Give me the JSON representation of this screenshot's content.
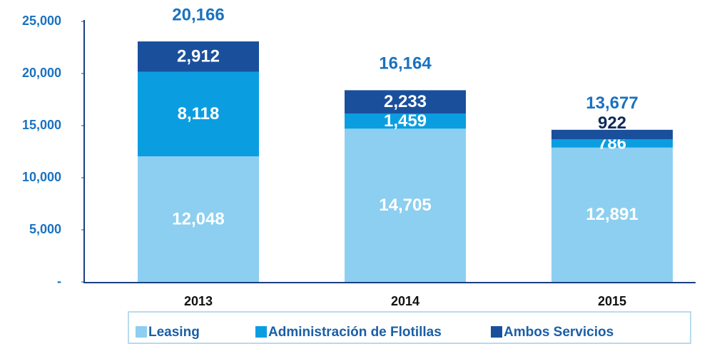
{
  "chart_data": {
    "type": "stacked_bar",
    "categories": [
      "2013",
      "2014",
      "2015"
    ],
    "series": [
      {
        "name": "Leasing",
        "color": "#8ccff0",
        "values": [
          12048,
          14705,
          12891
        ],
        "value_labels": [
          "12,048",
          "14,705",
          "12,891"
        ]
      },
      {
        "name": "Administración de Flotillas",
        "color": "#0a9ee0",
        "values": [
          8118,
          1459,
          786
        ],
        "value_labels": [
          "8,118",
          "1,459",
          "786"
        ]
      },
      {
        "name": "Ambos Servicios",
        "color": "#1a4f9c",
        "values": [
          2912,
          2233,
          922
        ],
        "value_labels": [
          "2,912",
          "2,233",
          "922"
        ]
      }
    ],
    "annotations": [
      "20,166",
      "16,164",
      "13,677"
    ],
    "ylim": [
      0,
      25000
    ],
    "yticks": [
      {
        "value": 0,
        "label": "-"
      },
      {
        "value": 5000,
        "label": "5,000"
      },
      {
        "value": 10000,
        "label": "10,000"
      },
      {
        "value": 15000,
        "label": "15,000"
      },
      {
        "value": 20000,
        "label": "20,000"
      },
      {
        "value": 25000,
        "label": "25,000"
      }
    ],
    "legend": "bottom"
  }
}
